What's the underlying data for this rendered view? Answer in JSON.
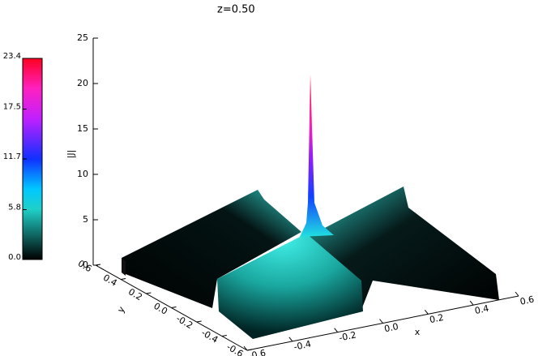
{
  "chart_data": {
    "type": "surface",
    "title": "z=0.50",
    "xlabel": "x",
    "ylabel": "y",
    "zlabel": "|J|",
    "xlim": [
      -0.6,
      0.6
    ],
    "xticks": [
      -0.6,
      -0.4,
      -0.2,
      {
        "value": 0,
        "label": "0.0"
      },
      0.2,
      0.4,
      0.6
    ],
    "ylim": [
      -0.6,
      0.6
    ],
    "yticks": [
      -0.6,
      -0.4,
      -0.2,
      {
        "value": 0,
        "label": "0.0"
      },
      0.2,
      0.4,
      0.6
    ],
    "zlim": [
      0,
      25
    ],
    "zticks": [
      0,
      5,
      10,
      15,
      20,
      25
    ],
    "colorbar": {
      "lim": [
        0,
        23.4
      ],
      "ticks": [
        {
          "value": 0,
          "label": "0.0"
        },
        5.8,
        11.7,
        17.5,
        23.4
      ]
    }
  }
}
